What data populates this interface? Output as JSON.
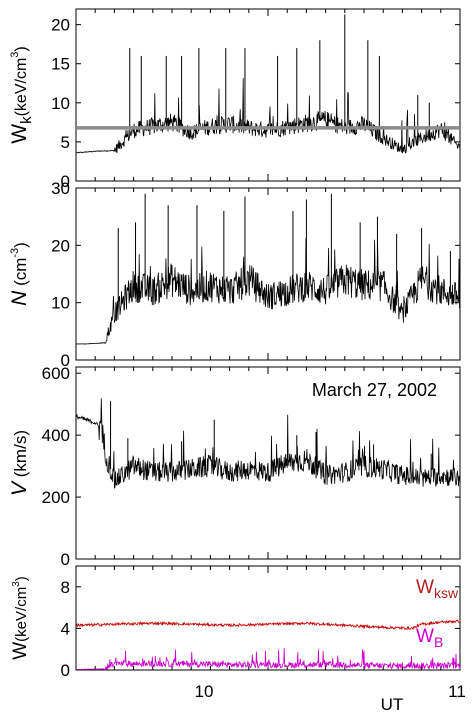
{
  "chart_data": [
    {
      "type": "line",
      "ylabel_main": "W",
      "ylabel_sub": "k",
      "ylabel_unit": "(keV/cm",
      "ylabel_sup": "3",
      "ylabel_close": ")",
      "ylim": [
        0,
        22
      ],
      "yticks": [
        0,
        5,
        10,
        15,
        20
      ],
      "threshold": 6.8,
      "series": [
        {
          "x": [
            9.0,
            9.1,
            9.2,
            9.3,
            9.4,
            9.5,
            9.6,
            9.7,
            9.8,
            9.9,
            10.0,
            10.1,
            10.2,
            10.3,
            10.4,
            10.5,
            10.6,
            10.7,
            10.8,
            10.9,
            11.0
          ],
          "values": [
            3.6,
            3.8,
            3.9,
            6.5,
            7.0,
            7.5,
            6.2,
            7.0,
            7.3,
            6.8,
            6.5,
            6.9,
            7.4,
            7.8,
            6.8,
            7.2,
            5.5,
            4.0,
            5.5,
            6.6,
            4.2
          ]
        }
      ],
      "peaks": [
        {
          "x": 9.28,
          "y": 17
        },
        {
          "x": 9.34,
          "y": 16
        },
        {
          "x": 9.47,
          "y": 16
        },
        {
          "x": 9.55,
          "y": 16
        },
        {
          "x": 9.64,
          "y": 17
        },
        {
          "x": 9.78,
          "y": 17
        },
        {
          "x": 9.88,
          "y": 17
        },
        {
          "x": 10.05,
          "y": 16
        },
        {
          "x": 10.15,
          "y": 17
        },
        {
          "x": 10.27,
          "y": 18
        },
        {
          "x": 10.4,
          "y": 21.3
        },
        {
          "x": 10.52,
          "y": 18
        },
        {
          "x": 10.58,
          "y": 16
        },
        {
          "x": 10.78,
          "y": 11
        },
        {
          "x": 10.84,
          "y": 10
        },
        {
          "x": 10.92,
          "y": 7.5
        }
      ]
    },
    {
      "type": "line",
      "ylabel_main": "N",
      "ylabel_unit": " (cm",
      "ylabel_sup": "-3",
      "ylabel_close": ")",
      "ylim": [
        0,
        30
      ],
      "yticks": [
        0,
        10,
        20,
        30
      ],
      "series": [
        {
          "x": [
            9.0,
            9.05,
            9.1,
            9.15,
            9.2,
            9.3,
            9.4,
            9.5,
            9.6,
            9.7,
            9.8,
            9.9,
            10.0,
            10.1,
            10.2,
            10.3,
            10.4,
            10.5,
            10.6,
            10.7,
            10.8,
            10.9,
            11.0
          ],
          "values": [
            2.8,
            2.8,
            2.9,
            3.0,
            8.0,
            13,
            12,
            14,
            12,
            13,
            12,
            14,
            11,
            12,
            13,
            12,
            14,
            13,
            13,
            8,
            14,
            12,
            11
          ]
        }
      ],
      "peaks": [
        {
          "x": 9.22,
          "y": 23
        },
        {
          "x": 9.31,
          "y": 24
        },
        {
          "x": 9.36,
          "y": 29
        },
        {
          "x": 9.48,
          "y": 27
        },
        {
          "x": 9.63,
          "y": 27
        },
        {
          "x": 9.77,
          "y": 26
        },
        {
          "x": 9.88,
          "y": 28.5
        },
        {
          "x": 10.13,
          "y": 26
        },
        {
          "x": 10.2,
          "y": 28
        },
        {
          "x": 10.33,
          "y": 29
        },
        {
          "x": 10.48,
          "y": 24
        },
        {
          "x": 10.57,
          "y": 25
        },
        {
          "x": 10.67,
          "y": 22
        },
        {
          "x": 10.8,
          "y": 23
        },
        {
          "x": 10.95,
          "y": 19
        }
      ]
    },
    {
      "type": "line",
      "ylabel_main": "V",
      "ylabel_unit": " (km/s)",
      "ylim": [
        0,
        620
      ],
      "yticks": [
        0,
        200,
        400,
        600
      ],
      "annotation": "March 27, 2002",
      "series": [
        {
          "x": [
            9.0,
            9.05,
            9.1,
            9.13,
            9.16,
            9.2,
            9.3,
            9.4,
            9.5,
            9.6,
            9.7,
            9.8,
            9.9,
            10.0,
            10.1,
            10.2,
            10.3,
            10.4,
            10.5,
            10.6,
            10.7,
            10.8,
            10.9,
            11.0
          ],
          "values": [
            460,
            450,
            440,
            420,
            330,
            250,
            300,
            280,
            280,
            290,
            300,
            280,
            290,
            280,
            310,
            320,
            270,
            280,
            300,
            290,
            270,
            260,
            270,
            260
          ]
        }
      ],
      "peaks": [
        {
          "x": 9.18,
          "y": 510
        },
        {
          "x": 9.27,
          "y": 390
        },
        {
          "x": 9.55,
          "y": 380
        },
        {
          "x": 9.72,
          "y": 450
        },
        {
          "x": 10.15,
          "y": 400
        },
        {
          "x": 10.25,
          "y": 410
        },
        {
          "x": 10.55,
          "y": 370
        },
        {
          "x": 10.85,
          "y": 340
        }
      ]
    },
    {
      "type": "line",
      "ylabel_main": "W",
      "ylabel_unit": "(keV/cm",
      "ylabel_sup": "3",
      "ylabel_close": ")",
      "ylim": [
        0,
        10
      ],
      "yticks": [
        0,
        4,
        8
      ],
      "xlim": [
        9.0,
        11.0
      ],
      "xticks": [
        10,
        11
      ],
      "xlabel": "UT",
      "series": [
        {
          "name": "W",
          "name_sub": "ksw",
          "color": "#cc0000",
          "x": [
            9.0,
            9.2,
            9.4,
            9.6,
            9.8,
            10.0,
            10.2,
            10.4,
            10.6,
            10.75,
            10.8,
            10.9,
            11.0
          ],
          "values": [
            4.3,
            4.4,
            4.5,
            4.4,
            4.3,
            4.4,
            4.5,
            4.3,
            4.1,
            4.0,
            4.4,
            4.6,
            4.7
          ]
        },
        {
          "name": "W",
          "name_sub": "B",
          "color": "#cc00cc",
          "x": [
            9.0,
            9.15,
            9.2,
            9.4,
            9.6,
            9.8,
            10.0,
            10.2,
            10.4,
            10.6,
            10.8,
            11.0
          ],
          "values": [
            0.05,
            0.1,
            0.6,
            0.6,
            0.6,
            0.5,
            0.5,
            0.5,
            0.5,
            0.4,
            0.4,
            0.4
          ]
        }
      ]
    }
  ]
}
